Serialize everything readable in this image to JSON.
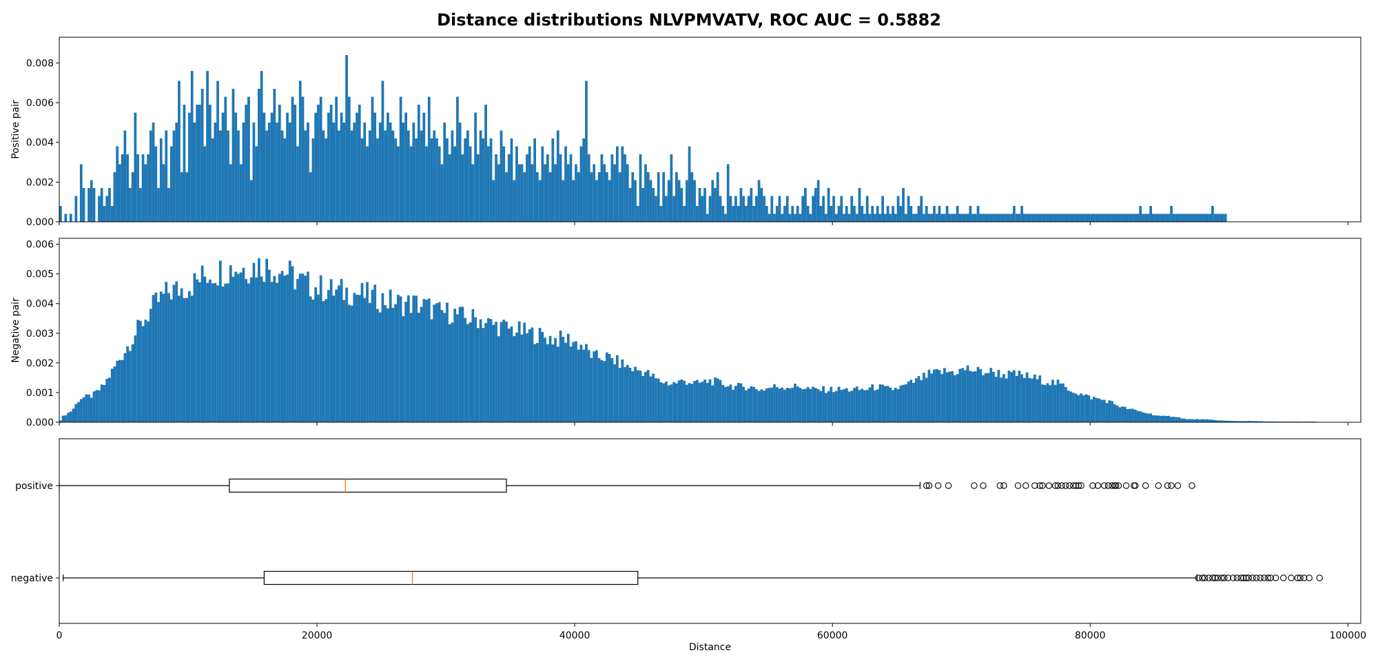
{
  "title": "Distance distributions NLVPMVATV, ROC AUC = 0.5882",
  "chart_data": [
    {
      "type": "bar",
      "name": "positive-histogram",
      "ylabel": "Positive pair",
      "xlim": [
        0,
        101000
      ],
      "ylim": [
        0,
        0.0093
      ],
      "yticks": [
        0.0,
        0.002,
        0.004,
        0.006,
        0.008
      ],
      "ytick_labels": [
        "0.000",
        "0.002",
        "0.004",
        "0.006",
        "0.008"
      ],
      "bin_start": 0,
      "bin_width": 200,
      "color": "#1f77b4",
      "values": [
        0.0008,
        0.0,
        0.0004,
        0.0,
        0.0004,
        0.0,
        0.0013,
        0.0,
        0.0029,
        0.0017,
        0.0,
        0.0017,
        0.0021,
        0.0017,
        0.0,
        0.0013,
        0.0017,
        0.0008,
        0.0013,
        0.0017,
        0.0008,
        0.0025,
        0.0038,
        0.0029,
        0.0034,
        0.0046,
        0.0034,
        0.0017,
        0.0025,
        0.0055,
        0.0034,
        0.0017,
        0.0034,
        0.0029,
        0.0034,
        0.0046,
        0.005,
        0.0038,
        0.0017,
        0.0042,
        0.0029,
        0.0046,
        0.0017,
        0.0038,
        0.0046,
        0.005,
        0.0071,
        0.0025,
        0.0059,
        0.0025,
        0.0055,
        0.0076,
        0.005,
        0.0059,
        0.0059,
        0.0067,
        0.0038,
        0.0076,
        0.0059,
        0.0042,
        0.005,
        0.0071,
        0.0046,
        0.0055,
        0.0063,
        0.0046,
        0.0029,
        0.0067,
        0.0055,
        0.0046,
        0.0029,
        0.005,
        0.0059,
        0.0063,
        0.0021,
        0.005,
        0.0038,
        0.0067,
        0.0076,
        0.0055,
        0.0046,
        0.005,
        0.0055,
        0.0067,
        0.005,
        0.0059,
        0.0046,
        0.0042,
        0.0055,
        0.005,
        0.0063,
        0.0059,
        0.0038,
        0.0071,
        0.0063,
        0.0046,
        0.005,
        0.0025,
        0.0042,
        0.0055,
        0.0059,
        0.0063,
        0.0046,
        0.0042,
        0.0055,
        0.0059,
        0.005,
        0.0063,
        0.0046,
        0.0055,
        0.005,
        0.0084,
        0.0063,
        0.0046,
        0.005,
        0.0055,
        0.0059,
        0.0042,
        0.005,
        0.0038,
        0.0046,
        0.0063,
        0.0055,
        0.0042,
        0.005,
        0.0071,
        0.0046,
        0.0055,
        0.005,
        0.0046,
        0.0042,
        0.0038,
        0.0063,
        0.005,
        0.0055,
        0.0046,
        0.0038,
        0.005,
        0.0042,
        0.0059,
        0.0046,
        0.0055,
        0.0038,
        0.0063,
        0.0042,
        0.0046,
        0.0042,
        0.0038,
        0.0029,
        0.005,
        0.0042,
        0.0034,
        0.0046,
        0.0038,
        0.0063,
        0.005,
        0.0034,
        0.0042,
        0.0046,
        0.0038,
        0.0029,
        0.0055,
        0.0034,
        0.0046,
        0.0042,
        0.0059,
        0.0038,
        0.0042,
        0.0021,
        0.0034,
        0.0029,
        0.0046,
        0.0038,
        0.0025,
        0.0034,
        0.0042,
        0.0021,
        0.0038,
        0.0029,
        0.0029,
        0.0025,
        0.0034,
        0.0038,
        0.0029,
        0.0042,
        0.0025,
        0.0021,
        0.0038,
        0.0029,
        0.0034,
        0.0025,
        0.0042,
        0.0029,
        0.0046,
        0.0034,
        0.0021,
        0.0038,
        0.0029,
        0.0034,
        0.0021,
        0.0029,
        0.0025,
        0.0038,
        0.0042,
        0.0071,
        0.0034,
        0.0025,
        0.0029,
        0.0021,
        0.0025,
        0.0034,
        0.0029,
        0.0025,
        0.0021,
        0.0034,
        0.0029,
        0.0038,
        0.0025,
        0.0038,
        0.0034,
        0.0029,
        0.0017,
        0.0025,
        0.0021,
        0.0008,
        0.0034,
        0.0017,
        0.0029,
        0.0025,
        0.0021,
        0.0017,
        0.0013,
        0.0025,
        0.0008,
        0.0025,
        0.0013,
        0.0021,
        0.0034,
        0.0013,
        0.0025,
        0.0021,
        0.0017,
        0.0008,
        0.0021,
        0.0038,
        0.0025,
        0.0021,
        0.0008,
        0.0017,
        0.0013,
        0.0017,
        0.0004,
        0.0013,
        0.0021,
        0.0017,
        0.0025,
        0.0013,
        0.0008,
        0.0004,
        0.0029,
        0.0013,
        0.0008,
        0.0013,
        0.0008,
        0.0017,
        0.0013,
        0.0008,
        0.0013,
        0.0017,
        0.0008,
        0.0013,
        0.0021,
        0.0017,
        0.0013,
        0.0008,
        0.0004,
        0.0013,
        0.0004,
        0.0008,
        0.0013,
        0.0004,
        0.0008,
        0.0013,
        0.0004,
        0.0008,
        0.0004,
        0.0008,
        0.0004,
        0.0013,
        0.0017,
        0.0008,
        0.0004,
        0.0013,
        0.0017,
        0.0021,
        0.0008,
        0.0013,
        0.0004,
        0.0017,
        0.0008,
        0.0013,
        0.0004,
        0.0008,
        0.0013,
        0.0004,
        0.0008,
        0.0004,
        0.0013,
        0.0008,
        0.0004,
        0.0017,
        0.0008,
        0.0004,
        0.0013,
        0.0004,
        0.0008,
        0.0004,
        0.0008,
        0.0004,
        0.0013,
        0.0004,
        0.0008,
        0.0004,
        0.0008,
        0.0004,
        0.0013,
        0.0008,
        0.0017,
        0.0004,
        0.0013,
        0.0008,
        0.0004,
        0.0004,
        0.0008,
        0.0013,
        0.0004,
        0.0008,
        0.0004,
        0.0004,
        0.0008,
        0.0004,
        0.0008,
        0.0004,
        0.0004,
        0.0008,
        0.0004,
        0.0004,
        0.0004,
        0.0008,
        0.0004,
        0.0004,
        0.0004,
        0.0004,
        0.0008,
        0.0004,
        0.0004,
        0.0008,
        0.0004,
        0.0004,
        0.0004,
        0.0004,
        0.0004,
        0.0004,
        0.0004,
        0.0004,
        0.0004,
        0.0004,
        0.0004,
        0.0004,
        0.0004,
        0.0008,
        0.0004,
        0.0004,
        0.0008,
        0.0004,
        0.0004,
        0.0004,
        0.0004,
        0.0004,
        0.0004,
        0.0004,
        0.0004,
        0.0004,
        0.0004,
        0.0004,
        0.0004,
        0.0004,
        0.0004,
        0.0004,
        0.0004,
        0.0004,
        0.0004,
        0.0004,
        0.0004,
        0.0004,
        0.0004,
        0.0004,
        0.0004,
        0.0004,
        0.0004,
        0.0004,
        0.0004,
        0.0004,
        0.0004,
        0.0004,
        0.0004,
        0.0004,
        0.0004,
        0.0004,
        0.0004,
        0.0004,
        0.0004,
        0.0004,
        0.0004,
        0.0004,
        0.0004,
        0.0004,
        0.0004,
        0.0004,
        0.0008,
        0.0004,
        0.0004,
        0.0004,
        0.0008,
        0.0004,
        0.0004,
        0.0004,
        0.0004,
        0.0004,
        0.0004,
        0.0004,
        0.0008,
        0.0004,
        0.0004,
        0.0004,
        0.0004,
        0.0004,
        0.0004,
        0.0004,
        0.0004,
        0.0004,
        0.0004,
        0.0004,
        0.0004,
        0.0004,
        0.0004,
        0.0004,
        0.0008,
        0.0004,
        0.0004,
        0.0004,
        0.0004,
        0.0004
      ]
    },
    {
      "type": "bar",
      "name": "negative-histogram",
      "ylabel": "Negative pair",
      "xlim": [
        0,
        101000
      ],
      "ylim": [
        0,
        0.0062
      ],
      "yticks": [
        0.0,
        0.001,
        0.002,
        0.003,
        0.004,
        0.005,
        0.006
      ],
      "ytick_labels": [
        "0.000",
        "0.001",
        "0.002",
        "0.003",
        "0.004",
        "0.005",
        "0.006"
      ],
      "bin_start": 0,
      "bin_width": 200,
      "color": "#1f77b4",
      "curve": [
        [
          0,
          0.0
        ],
        [
          300,
          0.0002
        ],
        [
          1000,
          0.0004
        ],
        [
          1600,
          0.0008
        ],
        [
          2600,
          0.0009
        ],
        [
          3400,
          0.0012
        ],
        [
          4500,
          0.002
        ],
        [
          5500,
          0.0027
        ],
        [
          6500,
          0.0034
        ],
        [
          7500,
          0.004
        ],
        [
          8500,
          0.0044
        ],
        [
          9500,
          0.0045
        ],
        [
          10500,
          0.0047
        ],
        [
          11500,
          0.005
        ],
        [
          12500,
          0.0051
        ],
        [
          13500,
          0.0052
        ],
        [
          14500,
          0.0052
        ],
        [
          15500,
          0.0053
        ],
        [
          16500,
          0.0052
        ],
        [
          17500,
          0.0051
        ],
        [
          18500,
          0.0048
        ],
        [
          19500,
          0.0046
        ],
        [
          20500,
          0.0045
        ],
        [
          21500,
          0.0044
        ],
        [
          22500,
          0.0044
        ],
        [
          23500,
          0.0043
        ],
        [
          24500,
          0.0042
        ],
        [
          25500,
          0.0041
        ],
        [
          26500,
          0.004
        ],
        [
          27500,
          0.004
        ],
        [
          28500,
          0.0039
        ],
        [
          29500,
          0.0037
        ],
        [
          30500,
          0.0037
        ],
        [
          31500,
          0.0035
        ],
        [
          32500,
          0.0035
        ],
        [
          33500,
          0.0033
        ],
        [
          34500,
          0.0032
        ],
        [
          35500,
          0.0031
        ],
        [
          36500,
          0.003
        ],
        [
          37500,
          0.0029
        ],
        [
          38500,
          0.0028
        ],
        [
          39500,
          0.0028
        ],
        [
          40500,
          0.0026
        ],
        [
          41500,
          0.0022
        ],
        [
          42500,
          0.0022
        ],
        [
          43500,
          0.002
        ],
        [
          44500,
          0.0018
        ],
        [
          45500,
          0.0017
        ],
        [
          46500,
          0.0014
        ],
        [
          47500,
          0.0013
        ],
        [
          48500,
          0.0014
        ],
        [
          49500,
          0.0013
        ],
        [
          50500,
          0.0014
        ],
        [
          51500,
          0.0013
        ],
        [
          52500,
          0.0012
        ],
        [
          53500,
          0.0012
        ],
        [
          54500,
          0.0011
        ],
        [
          55500,
          0.0012
        ],
        [
          56500,
          0.0012
        ],
        [
          57500,
          0.0012
        ],
        [
          58500,
          0.0011
        ],
        [
          59500,
          0.0011
        ],
        [
          60500,
          0.0011
        ],
        [
          61500,
          0.0011
        ],
        [
          62500,
          0.0011
        ],
        [
          63500,
          0.0012
        ],
        [
          64500,
          0.0011
        ],
        [
          65500,
          0.0012
        ],
        [
          66500,
          0.0014
        ],
        [
          67500,
          0.0016
        ],
        [
          68500,
          0.0017
        ],
        [
          69500,
          0.0017
        ],
        [
          70500,
          0.0018
        ],
        [
          71500,
          0.0017
        ],
        [
          72500,
          0.0017
        ],
        [
          73500,
          0.0016
        ],
        [
          74500,
          0.0016
        ],
        [
          75500,
          0.0015
        ],
        [
          76500,
          0.0014
        ],
        [
          77500,
          0.0013
        ],
        [
          78500,
          0.0011
        ],
        [
          79500,
          0.0009
        ],
        [
          80500,
          0.0008
        ],
        [
          81500,
          0.0007
        ],
        [
          82500,
          0.0005
        ],
        [
          83500,
          0.0004
        ],
        [
          84500,
          0.0003
        ],
        [
          85500,
          0.0002
        ],
        [
          86500,
          0.0002
        ],
        [
          87500,
          0.0001
        ],
        [
          88500,
          0.0001
        ],
        [
          89500,
          8e-05
        ],
        [
          90500,
          5e-05
        ],
        [
          91500,
          4e-05
        ],
        [
          92500,
          4e-05
        ],
        [
          93500,
          3e-05
        ],
        [
          94500,
          2e-05
        ],
        [
          95500,
          2e-05
        ],
        [
          96500,
          2e-05
        ],
        [
          97500,
          2e-05
        ],
        [
          98000,
          0.0
        ]
      ]
    },
    {
      "type": "box",
      "name": "boxplot",
      "xlabel": "Distance",
      "xlim": [
        0,
        101000
      ],
      "xticks": [
        0,
        20000,
        40000,
        60000,
        80000,
        100000
      ],
      "xtick_labels": [
        "0",
        "20000",
        "40000",
        "60000",
        "80000",
        "100000"
      ],
      "box_color": "#000000",
      "median_color": "#ff7f0e",
      "series": [
        {
          "name": "positive",
          "whisker_low": 0,
          "q1": 13200,
          "median": 22200,
          "q3": 34700,
          "whisker_high": 66800,
          "outliers": [
            67300,
            67500,
            68200,
            69000,
            71000,
            71700,
            73000,
            73300,
            74400,
            75000,
            75700,
            76100,
            76300,
            76800,
            77300,
            77500,
            77800,
            78100,
            78400,
            78700,
            78900,
            79100,
            79300,
            80200,
            80600,
            81100,
            81400,
            81700,
            81900,
            82000,
            82200,
            82800,
            83400,
            83500,
            84300,
            85300,
            86000,
            86300,
            86800,
            87900
          ]
        },
        {
          "name": "negative",
          "whisker_low": 300,
          "q1": 15900,
          "median": 27400,
          "q3": 44900,
          "whisker_high": 88300,
          "outliers": [
            88400,
            88700,
            88900,
            89200,
            89500,
            89700,
            89900,
            90200,
            90400,
            90700,
            91100,
            91400,
            91700,
            91900,
            92100,
            92300,
            92600,
            92900,
            93200,
            93500,
            93800,
            94000,
            94400,
            95000,
            95600,
            96100,
            96300,
            96600,
            97000,
            97800
          ]
        }
      ]
    }
  ]
}
